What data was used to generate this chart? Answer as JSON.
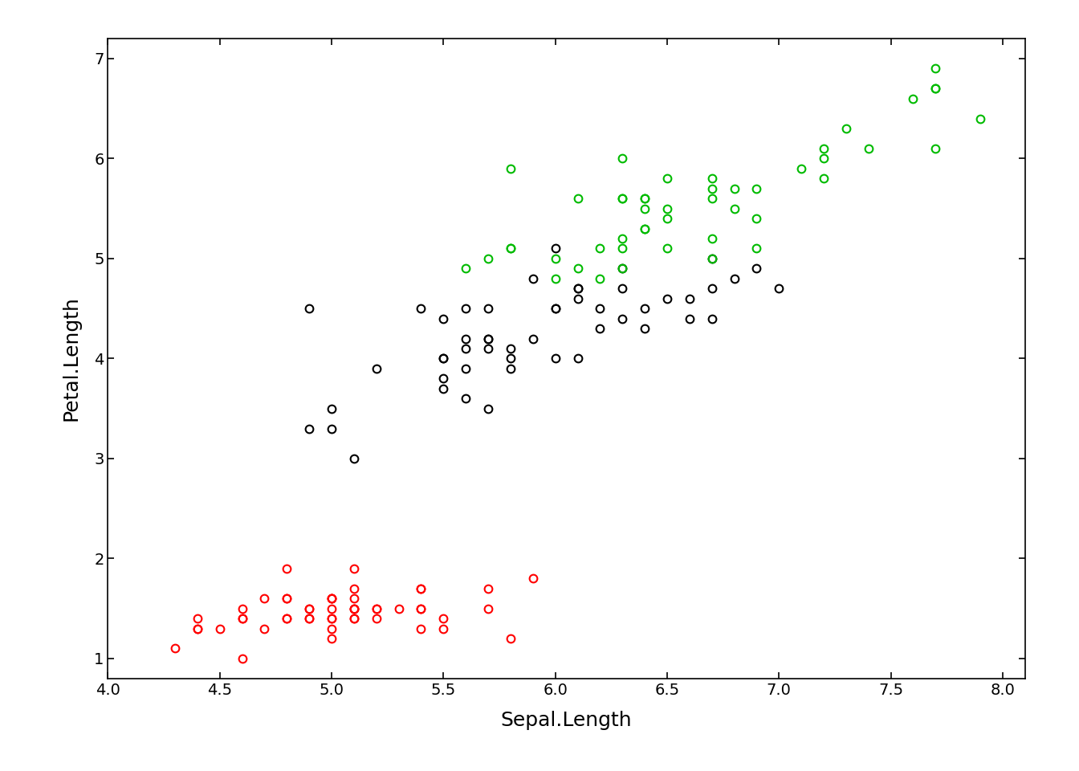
{
  "title": "",
  "xlabel": "Sepal.Length",
  "ylabel": "Petal.Length",
  "xlim": [
    4.1,
    8.1
  ],
  "ylim": [
    0.8,
    7.2
  ],
  "xticks": [
    4.0,
    4.5,
    5.0,
    5.5,
    6.0,
    6.5,
    7.0,
    7.5,
    8.0
  ],
  "yticks": [
    1,
    2,
    3,
    4,
    5,
    6,
    7
  ],
  "background_color": "#ffffff",
  "marker_size": 7,
  "marker_linewidth": 1.5,
  "cluster1_color": "#ff0000",
  "cluster2_color": "#000000",
  "cluster3_color": "#00bb00",
  "sepal_length": [
    5.1,
    4.9,
    4.7,
    4.6,
    5.0,
    5.4,
    4.6,
    5.0,
    4.4,
    4.9,
    5.4,
    4.8,
    4.8,
    4.3,
    5.8,
    5.7,
    5.4,
    5.1,
    5.7,
    5.1,
    5.4,
    5.1,
    4.6,
    5.1,
    4.8,
    5.0,
    5.0,
    5.2,
    5.2,
    4.7,
    4.8,
    5.4,
    5.2,
    5.5,
    4.9,
    5.0,
    5.5,
    4.9,
    4.4,
    5.1,
    5.0,
    4.5,
    4.4,
    5.0,
    5.1,
    4.8,
    5.1,
    4.6,
    5.3,
    5.0,
    7.0,
    6.4,
    6.9,
    5.5,
    6.5,
    5.7,
    6.3,
    4.9,
    6.6,
    5.2,
    5.0,
    5.9,
    6.0,
    6.1,
    5.6,
    6.7,
    5.6,
    5.8,
    6.2,
    5.6,
    5.9,
    6.1,
    6.3,
    6.1,
    6.4,
    6.6,
    6.8,
    6.7,
    6.0,
    5.7,
    5.5,
    5.5,
    5.8,
    6.0,
    5.4,
    6.0,
    6.7,
    6.3,
    5.6,
    5.5,
    5.5,
    6.1,
    5.8,
    5.0,
    5.6,
    5.7,
    5.7,
    6.2,
    5.1,
    5.7,
    6.3,
    5.8,
    7.1,
    6.3,
    6.5,
    7.6,
    4.9,
    7.3,
    6.7,
    7.2,
    6.5,
    6.4,
    6.8,
    5.7,
    5.8,
    6.4,
    6.5,
    7.7,
    7.7,
    6.0,
    6.9,
    5.6,
    7.7,
    6.3,
    6.7,
    7.2,
    6.2,
    6.1,
    6.4,
    7.2,
    7.4,
    7.9,
    6.4,
    6.3,
    6.1,
    7.7,
    6.3,
    6.4,
    6.0,
    6.9,
    6.7,
    6.9,
    5.8,
    6.8,
    6.7,
    6.7,
    6.3,
    6.5,
    6.2,
    5.9
  ],
  "petal_length": [
    1.4,
    1.4,
    1.3,
    1.5,
    1.4,
    1.7,
    1.4,
    1.5,
    1.4,
    1.5,
    1.5,
    1.6,
    1.4,
    1.1,
    1.2,
    1.5,
    1.3,
    1.4,
    1.7,
    1.5,
    1.7,
    1.5,
    1.0,
    1.7,
    1.9,
    1.6,
    1.6,
    1.5,
    1.4,
    1.6,
    1.6,
    1.5,
    1.5,
    1.4,
    1.5,
    1.2,
    1.3,
    1.4,
    1.3,
    1.5,
    1.3,
    1.3,
    1.3,
    1.6,
    1.9,
    1.4,
    1.6,
    1.4,
    1.5,
    1.4,
    4.7,
    4.5,
    4.9,
    4.0,
    4.6,
    4.5,
    4.7,
    3.3,
    4.6,
    3.9,
    3.5,
    4.2,
    4.0,
    4.7,
    3.6,
    4.4,
    4.5,
    4.1,
    4.5,
    3.9,
    4.8,
    4.0,
    4.9,
    4.7,
    4.3,
    4.4,
    4.8,
    5.0,
    4.5,
    3.5,
    3.8,
    3.7,
    3.9,
    5.1,
    4.5,
    4.5,
    4.7,
    4.4,
    4.1,
    4.0,
    4.4,
    4.6,
    4.0,
    3.3,
    4.2,
    4.2,
    4.2,
    4.3,
    3.0,
    4.1,
    6.0,
    5.1,
    5.9,
    5.6,
    5.8,
    6.6,
    4.5,
    6.3,
    5.8,
    6.1,
    5.1,
    5.3,
    5.5,
    5.0,
    5.1,
    5.3,
    5.5,
    6.7,
    6.9,
    5.0,
    5.7,
    4.9,
    6.7,
    4.9,
    5.7,
    6.0,
    4.8,
    4.9,
    5.6,
    5.8,
    6.1,
    6.4,
    5.6,
    5.1,
    5.6,
    6.1,
    5.6,
    5.5,
    4.8,
    5.4,
    5.6,
    5.1,
    5.9,
    5.7,
    5.2,
    5.0,
    5.2,
    5.4,
    5.1,
    1.8
  ],
  "cluster_labels": [
    0,
    0,
    0,
    0,
    0,
    0,
    0,
    0,
    0,
    0,
    0,
    0,
    0,
    0,
    0,
    0,
    0,
    0,
    0,
    0,
    0,
    0,
    0,
    0,
    0,
    0,
    0,
    0,
    0,
    0,
    0,
    0,
    0,
    0,
    0,
    0,
    0,
    0,
    0,
    0,
    0,
    0,
    0,
    0,
    0,
    0,
    0,
    0,
    0,
    0,
    1,
    1,
    1,
    1,
    1,
    1,
    1,
    1,
    1,
    1,
    1,
    1,
    1,
    1,
    1,
    1,
    1,
    1,
    1,
    1,
    1,
    1,
    1,
    1,
    1,
    1,
    1,
    1,
    1,
    1,
    1,
    1,
    1,
    1,
    1,
    1,
    1,
    1,
    1,
    1,
    1,
    1,
    1,
    1,
    1,
    1,
    1,
    1,
    1,
    1,
    2,
    2,
    2,
    2,
    2,
    2,
    1,
    2,
    2,
    2,
    2,
    2,
    2,
    2,
    2,
    2,
    2,
    2,
    2,
    2,
    2,
    2,
    2,
    2,
    2,
    2,
    2,
    2,
    2,
    2,
    2,
    2,
    2,
    2,
    2,
    2,
    2,
    2,
    2,
    2,
    2,
    2,
    2,
    2,
    2,
    2,
    2,
    2,
    2,
    0
  ]
}
